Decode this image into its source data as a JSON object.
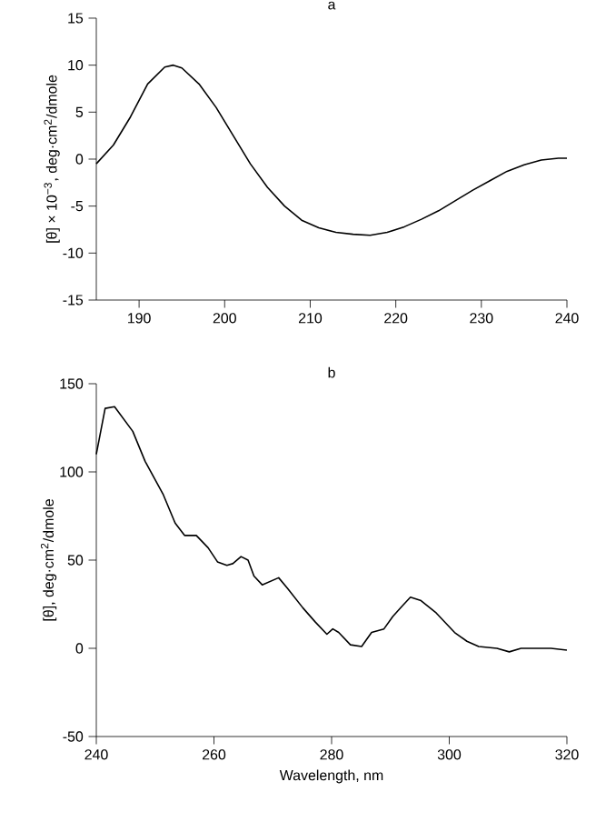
{
  "chart_data": [
    {
      "type": "line",
      "title": "a",
      "ylabel": "[θ] × 10$^{−3}$, deg·cm$^{2}$/dmole",
      "xlim": [
        185,
        240
      ],
      "ylim": [
        -15,
        15
      ],
      "xticks": [
        190,
        200,
        210,
        220,
        230,
        240
      ],
      "yticks": [
        -15,
        -10,
        -5,
        0,
        5,
        10,
        15
      ],
      "x": [
        185,
        187,
        189,
        191,
        193,
        194,
        195,
        197,
        199,
        201,
        203,
        205,
        207,
        209,
        211,
        213,
        215,
        217,
        219,
        221,
        223,
        225,
        227,
        229,
        231,
        233,
        235,
        237,
        239,
        240
      ],
      "series": [
        {
          "color": "#000000",
          "values": [
            -0.5,
            1.5,
            4.5,
            8,
            9.8,
            10,
            9.7,
            8,
            5.5,
            2.5,
            -0.5,
            -3,
            -5,
            -6.5,
            -7.3,
            -7.8,
            -8,
            -8.1,
            -7.8,
            -7.2,
            -6.4,
            -5.5,
            -4.4,
            -3.3,
            -2.3,
            -1.3,
            -0.6,
            -0.1,
            0.1,
            0.1
          ]
        }
      ]
    },
    {
      "type": "line",
      "title": "b",
      "xlabel": "Wavelength, nm",
      "ylabel": "[θ], deg·cm$^{2}$/dmole",
      "xlim": [
        240,
        320
      ],
      "ylim": [
        -50,
        150
      ],
      "xticks": [
        240,
        260,
        280,
        300,
        320
      ],
      "yticks": [
        -50,
        0,
        50,
        100,
        150
      ],
      "x": [
        240,
        241.5,
        243.1,
        246.2,
        248.3,
        251.4,
        253.4,
        255,
        257,
        259,
        260.6,
        262.2,
        263.2,
        264.6,
        265.8,
        266.8,
        268.2,
        269.6,
        271,
        272.5,
        275.1,
        277.2,
        279.2,
        280.2,
        281.2,
        283.2,
        285.1,
        286.8,
        288.9,
        290.4,
        292,
        293.4,
        295.2,
        297.8,
        300.9,
        303,
        305,
        308.1,
        310.2,
        312.2,
        315.3,
        317.3,
        320
      ],
      "series": [
        {
          "color": "#000000",
          "values": [
            110,
            136,
            137,
            123,
            106,
            87,
            71,
            64,
            64,
            57,
            49,
            47,
            48,
            52,
            50,
            41,
            36,
            38,
            40,
            34,
            23,
            15,
            8,
            11,
            9,
            2,
            1,
            9,
            11,
            18,
            24,
            29,
            27,
            20,
            9,
            4,
            1,
            0,
            -2,
            0,
            0,
            0,
            -1
          ]
        }
      ]
    }
  ]
}
